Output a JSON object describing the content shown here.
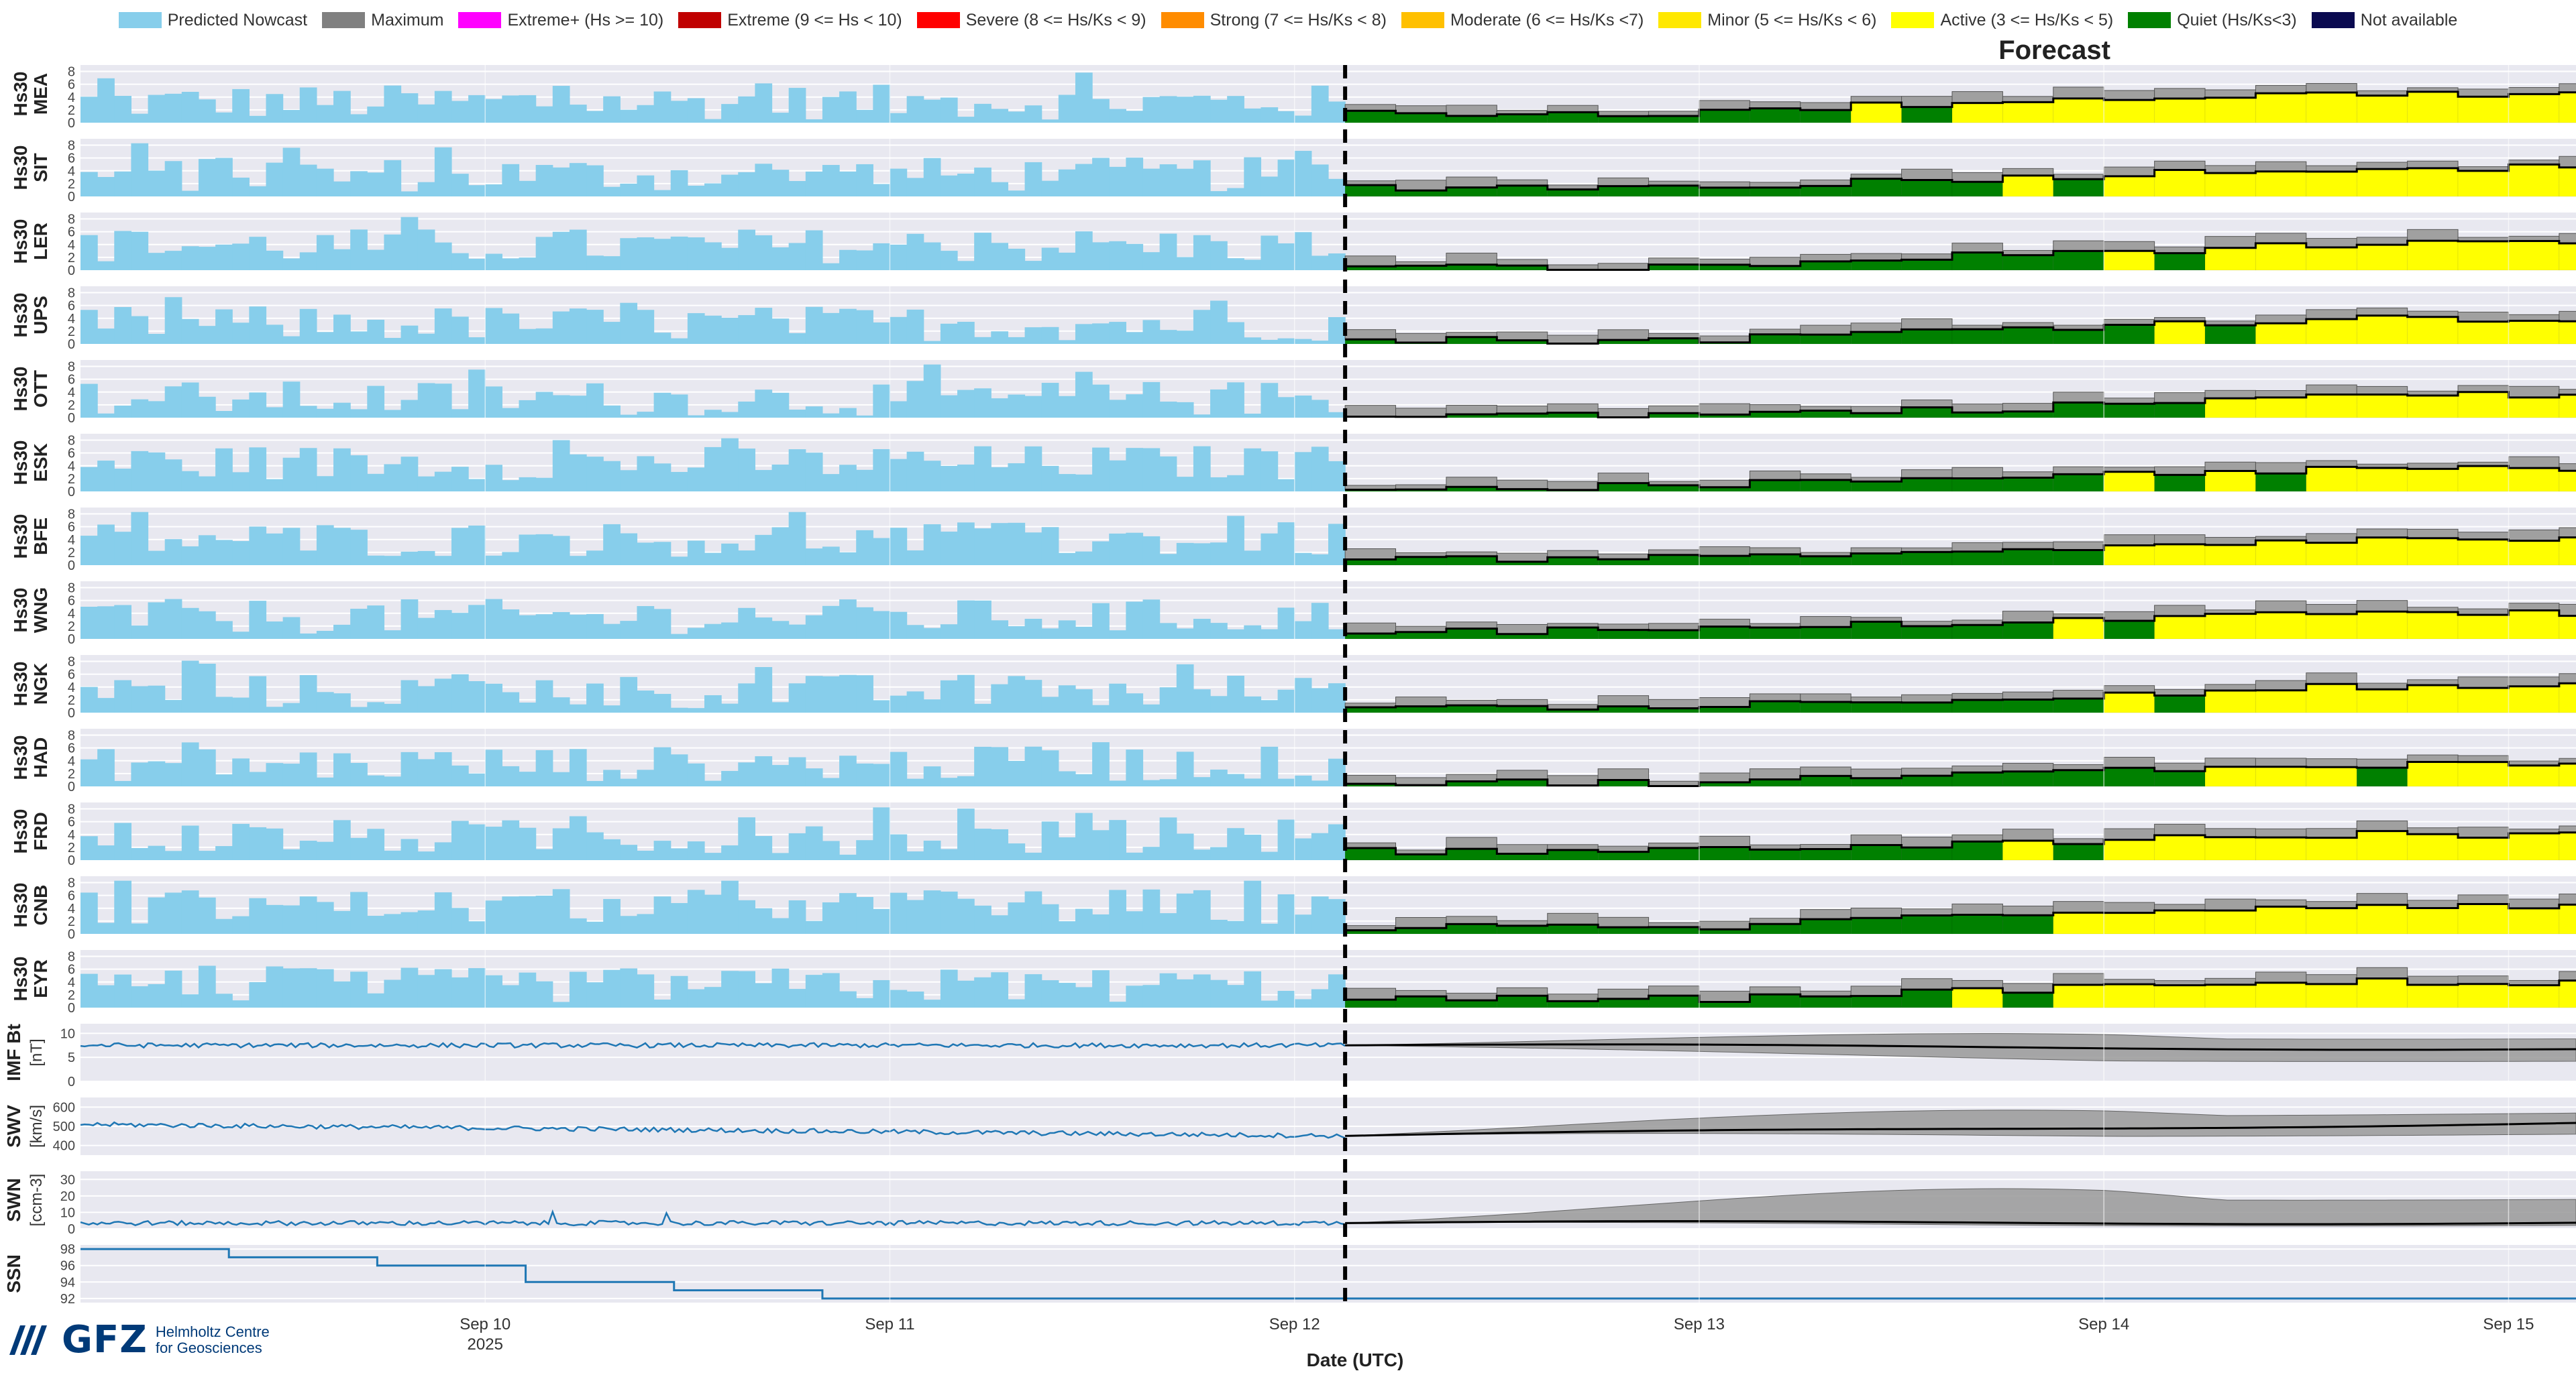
{
  "legend": [
    {
      "label": "Predicted Nowcast",
      "color": "#87ceeb"
    },
    {
      "label": "Maximum",
      "color": "#808080"
    },
    {
      "label": "Extreme+ (Hs >= 10)",
      "color": "#ff00ff"
    },
    {
      "label": "Extreme (9 <= Hs < 10)",
      "color": "#c00000"
    },
    {
      "label": "Severe (8 <= Hs/Ks < 9)",
      "color": "#ff0000"
    },
    {
      "label": "Strong (7 <= Hs/Ks < 8)",
      "color": "#ff8c00"
    },
    {
      "label": "Moderate (6 <= Hs/Ks <7)",
      "color": "#ffc000"
    },
    {
      "label": "Minor (5 <= Hs/Ks < 6)",
      "color": "#ffe800"
    },
    {
      "label": "Active (3 <= Hs/Ks < 5)",
      "color": "#ffff00"
    },
    {
      "label": "Quiet (Hs/Ks<3)",
      "color": "#008000"
    },
    {
      "label": "Not available",
      "color": "#0a0a50"
    }
  ],
  "forecast_title": "Forecast",
  "x_axis_title": "Date (UTC)",
  "logo": {
    "text": "GFZ",
    "line1": "Helmholtz Centre",
    "line2": "for Geosciences"
  },
  "chart_data": {
    "type": "bar",
    "x_range": [
      "2025-09-09T00:00",
      "2025-09-15T04:00"
    ],
    "now": "2025-09-12T03:00",
    "x_ticks": [
      {
        "date": "2025-09-10",
        "label": "Sep 10",
        "sub": "2025"
      },
      {
        "date": "2025-09-11",
        "label": "Sep 11",
        "sub": ""
      },
      {
        "date": "2025-09-12",
        "label": "Sep 12",
        "sub": ""
      },
      {
        "date": "2025-09-13",
        "label": "Sep 13",
        "sub": ""
      },
      {
        "date": "2025-09-14",
        "label": "Sep 14",
        "sub": ""
      },
      {
        "date": "2025-09-15",
        "label": "Sep 15",
        "sub": ""
      }
    ],
    "hs30_ylim": [
      0,
      9
    ],
    "hs30_yticks": [
      0,
      2,
      4,
      6,
      8
    ],
    "stations": [
      {
        "code": "MEA",
        "ylabel": "Hs30",
        "nowcast_level": 3.2,
        "forecast_day12": 1.5,
        "forecast_day13": 3.5,
        "forecast_day14": 4.5
      },
      {
        "code": "SIT",
        "ylabel": "Hs30",
        "nowcast_level": 3.4,
        "forecast_day12": 1.5,
        "forecast_day13": 3.0,
        "forecast_day14": 4.5
      },
      {
        "code": "LER",
        "ylabel": "Hs30",
        "nowcast_level": 3.8,
        "forecast_day12": 0.4,
        "forecast_day13": 2.5,
        "forecast_day14": 4.0
      },
      {
        "code": "UPS",
        "ylabel": "Hs30",
        "nowcast_level": 3.2,
        "forecast_day12": 0.6,
        "forecast_day13": 2.5,
        "forecast_day14": 4.0
      },
      {
        "code": "OTT",
        "ylabel": "Hs30",
        "nowcast_level": 3.0,
        "forecast_day12": 0.5,
        "forecast_day13": 1.5,
        "forecast_day14": 3.5
      },
      {
        "code": "ESK",
        "ylabel": "Hs30",
        "nowcast_level": 4.5,
        "forecast_day12": 0.8,
        "forecast_day13": 2.5,
        "forecast_day14": 3.5
      },
      {
        "code": "BFE",
        "ylabel": "Hs30",
        "nowcast_level": 4.0,
        "forecast_day12": 1.0,
        "forecast_day13": 2.0,
        "forecast_day14": 4.0
      },
      {
        "code": "WNG",
        "ylabel": "Hs30",
        "nowcast_level": 3.5,
        "forecast_day12": 1.3,
        "forecast_day13": 2.8,
        "forecast_day14": 4.0
      },
      {
        "code": "NGK",
        "ylabel": "Hs30",
        "nowcast_level": 3.3,
        "forecast_day12": 1.0,
        "forecast_day13": 2.5,
        "forecast_day14": 4.0
      },
      {
        "code": "HAD",
        "ylabel": "Hs30",
        "nowcast_level": 3.5,
        "forecast_day12": 0.6,
        "forecast_day13": 2.0,
        "forecast_day14": 3.5
      },
      {
        "code": "FRD",
        "ylabel": "Hs30",
        "nowcast_level": 3.6,
        "forecast_day12": 1.5,
        "forecast_day13": 2.8,
        "forecast_day14": 4.0
      },
      {
        "code": "CNB",
        "ylabel": "Hs30",
        "nowcast_level": 4.3,
        "forecast_day12": 1.0,
        "forecast_day13": 3.2,
        "forecast_day14": 4.5
      },
      {
        "code": "EYR",
        "ylabel": "Hs30",
        "nowcast_level": 3.5,
        "forecast_day12": 1.3,
        "forecast_day13": 2.8,
        "forecast_day14": 4.0
      }
    ],
    "solar_wind": [
      {
        "name": "IMF Bt",
        "ylabel": "IMF Bt",
        "unit": "[nT]",
        "ylim": [
          0,
          12
        ],
        "yticks": [
          0,
          5,
          10
        ],
        "nowcast": 7.5,
        "forecast_mean": 6.8,
        "forecast_upper": 11.0,
        "forecast_lower": 2.5
      },
      {
        "name": "SWV",
        "ylabel": "SWV",
        "unit": "[km/s]",
        "ylim": [
          350,
          650
        ],
        "yticks": [
          400,
          500,
          600
        ],
        "nowcast": 450,
        "forecast_mean": 520,
        "forecast_upper": 620,
        "forecast_lower": 420
      },
      {
        "name": "SWN",
        "ylabel": "SWN",
        "unit": "[ccm-3]",
        "ylim": [
          0,
          35
        ],
        "yticks": [
          0,
          10,
          20,
          30
        ],
        "nowcast": 3.5,
        "forecast_mean": 4.0,
        "forecast_upper": 32.0,
        "forecast_lower": 1.0
      },
      {
        "name": "SSN",
        "ylabel": "SSN",
        "unit": "",
        "ylim": [
          91.5,
          98.5
        ],
        "yticks": [
          92,
          94,
          96,
          98
        ],
        "values": [
          98,
          97,
          96,
          94,
          93,
          92
        ]
      }
    ]
  }
}
